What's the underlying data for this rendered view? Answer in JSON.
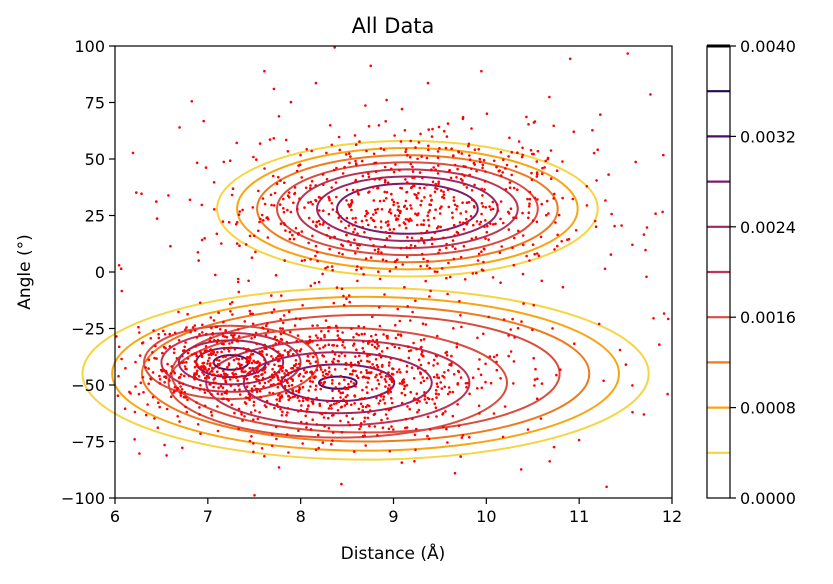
{
  "chart_data": {
    "type": "scatter",
    "title": "All Data",
    "xlabel": "Distance (Å)",
    "ylabel": "Angle (°)",
    "xlim": [
      6,
      12
    ],
    "ylim": [
      -100,
      100
    ],
    "x_ticks": [
      "6",
      "7",
      "8",
      "9",
      "10",
      "11",
      "12"
    ],
    "y_ticks": [
      "−100",
      "−75",
      "−50",
      "−25",
      "0",
      "25",
      "50",
      "75",
      "100"
    ],
    "grid": false,
    "point_color": "#ff0000",
    "clusters": [
      {
        "cx": 9.2,
        "cy": 29,
        "sx": 0.9,
        "sy": 17,
        "n": 650
      },
      {
        "cx": 8.3,
        "cy": -47,
        "sx": 1.0,
        "sy": 14,
        "n": 850
      },
      {
        "cx": 7.2,
        "cy": -40,
        "sx": 0.45,
        "sy": 9,
        "n": 300
      },
      {
        "cx": 9.0,
        "cy": 0,
        "sx": 3.0,
        "sy": 60,
        "n": 350
      }
    ],
    "density_contours": [
      {
        "level": 0.0004,
        "color": "#f6d543"
      },
      {
        "level": 0.0008,
        "color": "#f8a512"
      },
      {
        "level": 0.0012,
        "color": "#ee7a1e"
      },
      {
        "level": 0.0016,
        "color": "#d94d3e"
      },
      {
        "level": 0.002,
        "color": "#bb3655"
      },
      {
        "level": 0.0024,
        "color": "#9a2865"
      },
      {
        "level": 0.0028,
        "color": "#781c6d"
      },
      {
        "level": 0.0032,
        "color": "#4e0d6a"
      },
      {
        "level": 0.0036,
        "color": "#1f0c48"
      }
    ],
    "colorbar": {
      "range": [
        0,
        0.004
      ],
      "tick_labels": [
        "0.0000",
        "0.0008",
        "0.0016",
        "0.0024",
        "0.0032",
        "0.0040"
      ],
      "top_line_color": "#000004"
    }
  }
}
